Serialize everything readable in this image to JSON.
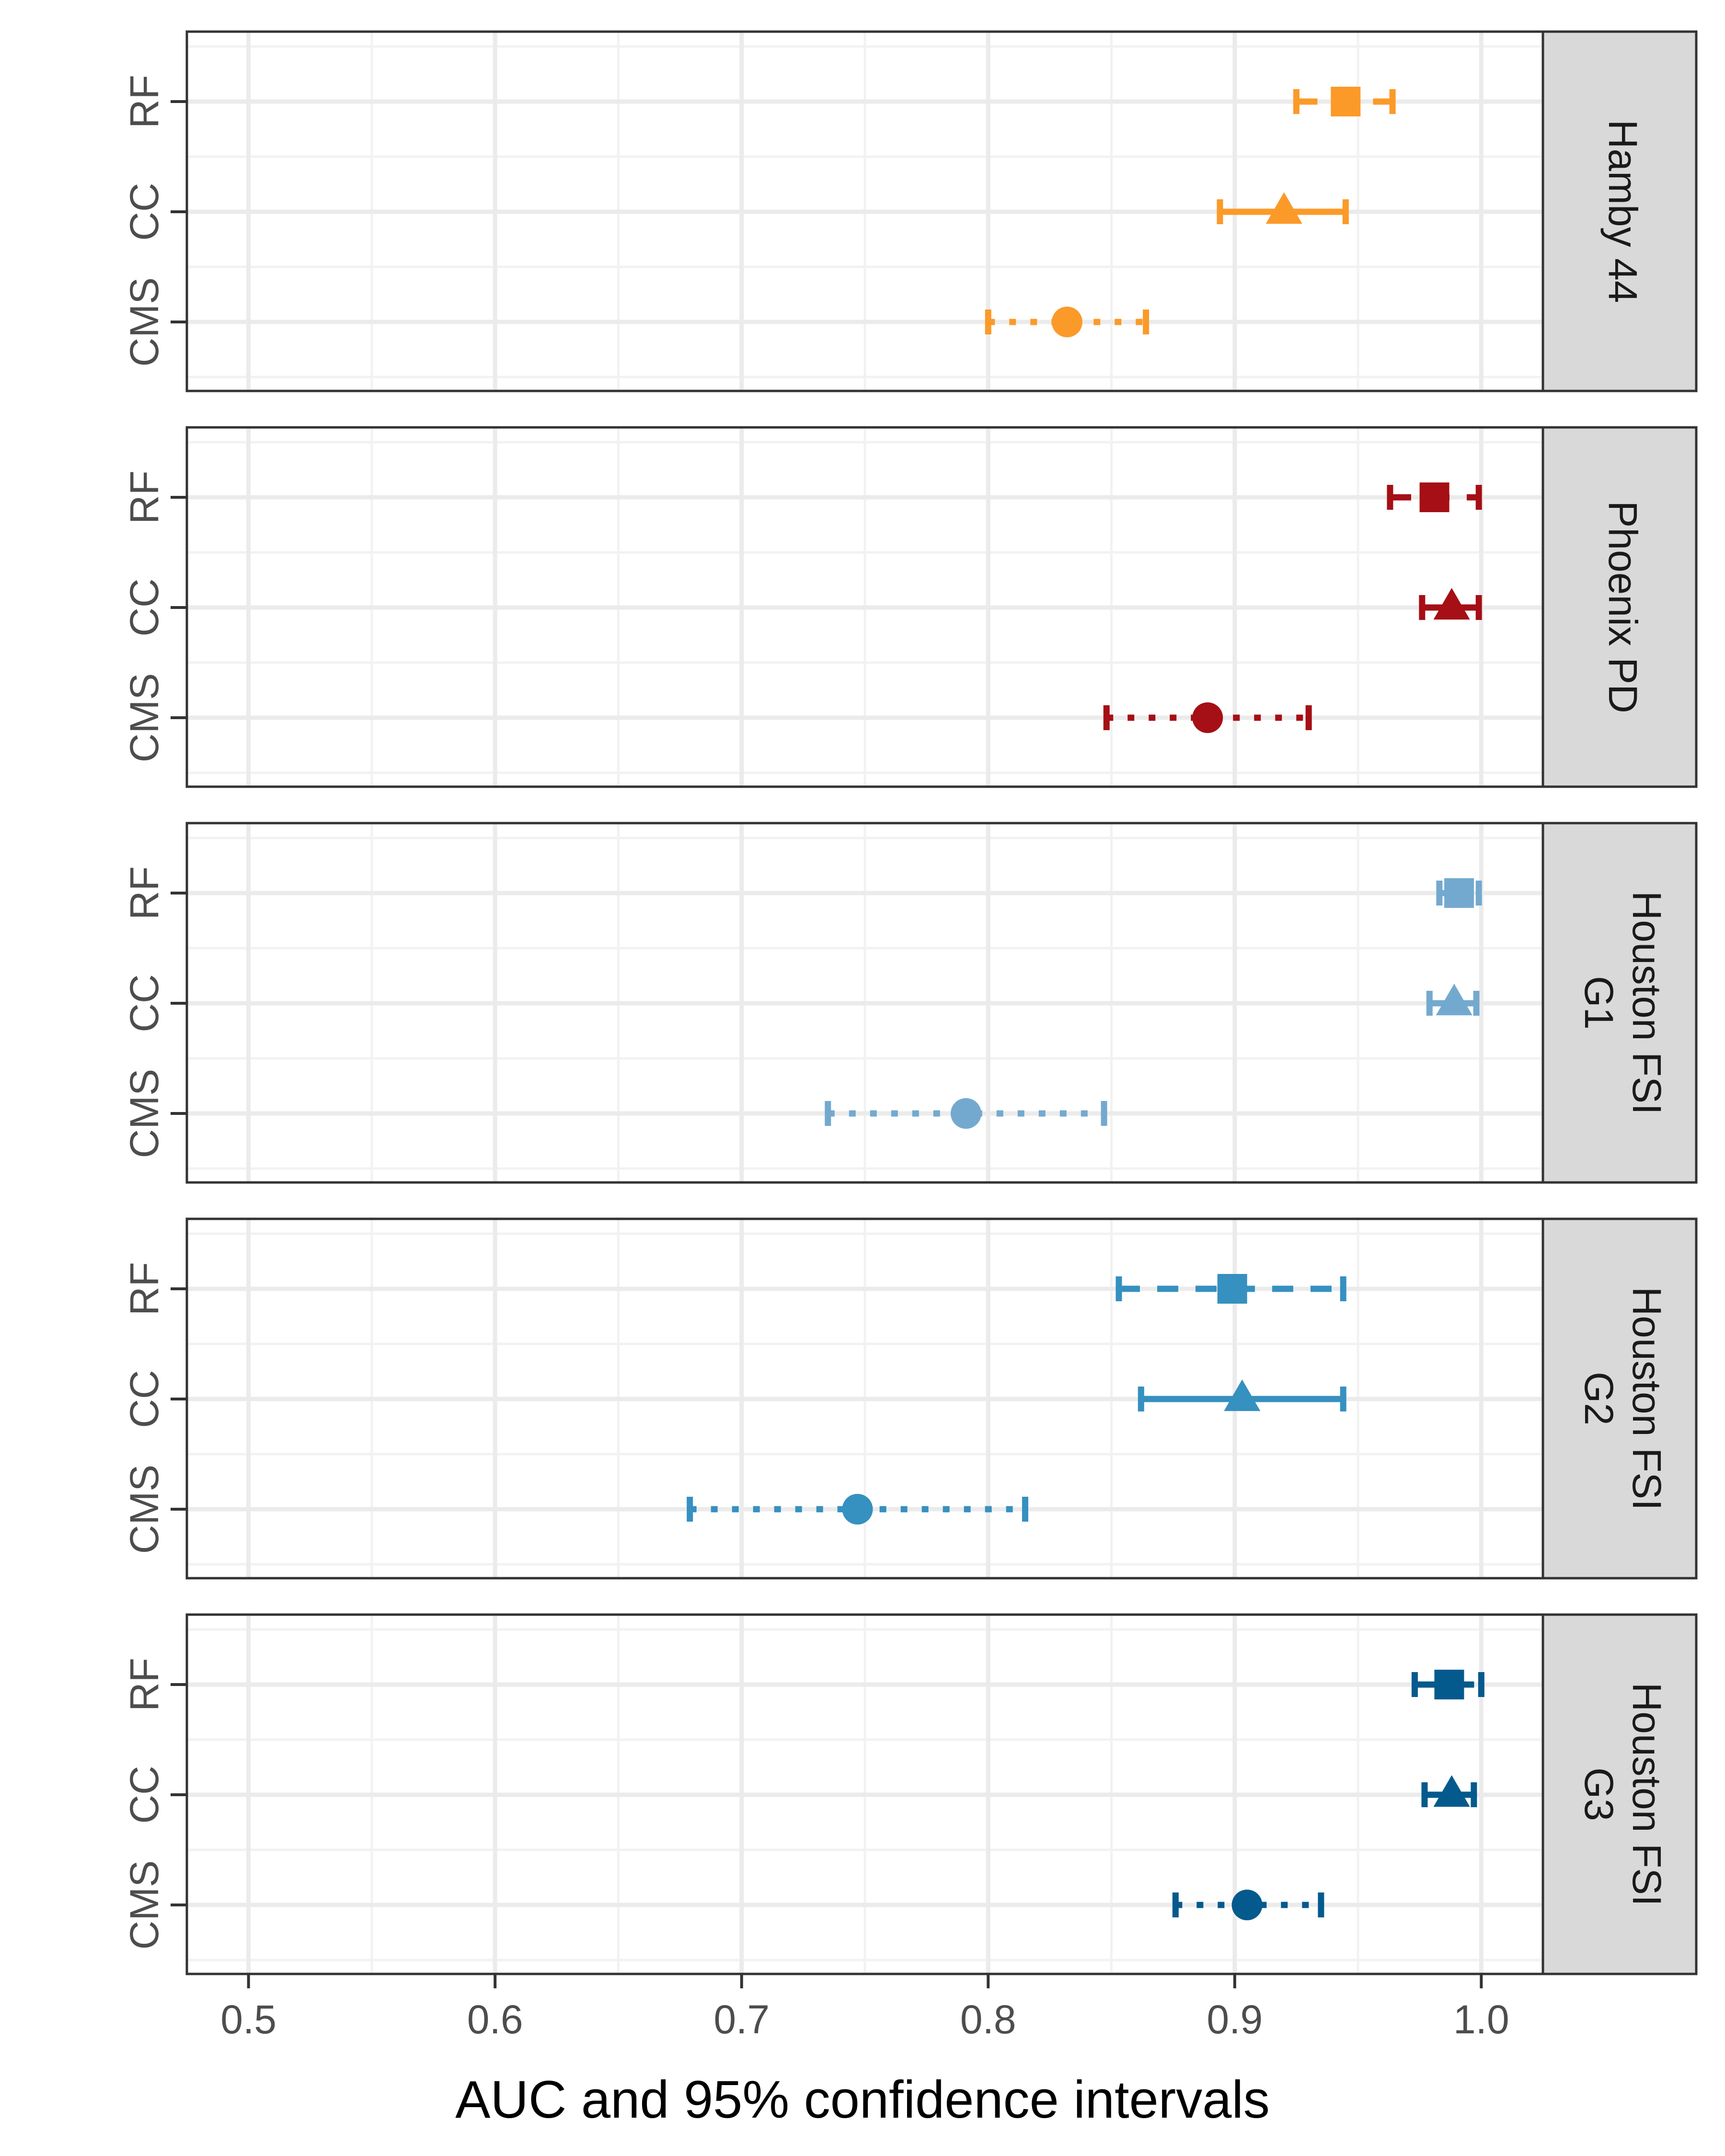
{
  "chart_data": {
    "type": "scatter",
    "xlabel": "AUC and 95% confidence intervals",
    "xlim": [
      0.475,
      1.025
    ],
    "xticks": [
      0.5,
      0.6,
      0.7,
      0.8,
      0.9,
      1.0
    ],
    "xtick_labels": [
      "0.5",
      "0.6",
      "0.7",
      "0.8",
      "0.9",
      "1.0"
    ],
    "categories": [
      "RF",
      "CC",
      "CMS"
    ],
    "grid": true,
    "panels": [
      {
        "label": [
          "Hamby 44"
        ],
        "color": "#fb9a29",
        "points": [
          {
            "method": "RF",
            "auc": 0.945,
            "lower": 0.925,
            "upper": 0.964,
            "shape": "square",
            "linetype": "dashed"
          },
          {
            "method": "CC",
            "auc": 0.92,
            "lower": 0.894,
            "upper": 0.945,
            "shape": "triangle",
            "linetype": "solid"
          },
          {
            "method": "CMS",
            "auc": 0.832,
            "lower": 0.8,
            "upper": 0.864,
            "shape": "circle",
            "linetype": "dotted"
          }
        ]
      },
      {
        "label": [
          "Phoenix PD"
        ],
        "color": "#a50f15",
        "points": [
          {
            "method": "RF",
            "auc": 0.981,
            "lower": 0.963,
            "upper": 0.999,
            "shape": "square",
            "linetype": "dashed"
          },
          {
            "method": "CC",
            "auc": 0.988,
            "lower": 0.976,
            "upper": 0.999,
            "shape": "triangle",
            "linetype": "solid"
          },
          {
            "method": "CMS",
            "auc": 0.889,
            "lower": 0.848,
            "upper": 0.93,
            "shape": "circle",
            "linetype": "dotted"
          }
        ]
      },
      {
        "label": [
          "Houston FSI",
          "G1"
        ],
        "color": "#74a9cf",
        "points": [
          {
            "method": "RF",
            "auc": 0.991,
            "lower": 0.983,
            "upper": 0.999,
            "shape": "square",
            "linetype": "dashed"
          },
          {
            "method": "CC",
            "auc": 0.989,
            "lower": 0.979,
            "upper": 0.998,
            "shape": "triangle",
            "linetype": "solid"
          },
          {
            "method": "CMS",
            "auc": 0.791,
            "lower": 0.735,
            "upper": 0.847,
            "shape": "circle",
            "linetype": "dotted"
          }
        ]
      },
      {
        "label": [
          "Houston FSI",
          "G2"
        ],
        "color": "#3690c0",
        "points": [
          {
            "method": "RF",
            "auc": 0.899,
            "lower": 0.853,
            "upper": 0.944,
            "shape": "square",
            "linetype": "dashed"
          },
          {
            "method": "CC",
            "auc": 0.903,
            "lower": 0.862,
            "upper": 0.944,
            "shape": "triangle",
            "linetype": "solid"
          },
          {
            "method": "CMS",
            "auc": 0.747,
            "lower": 0.679,
            "upper": 0.815,
            "shape": "circle",
            "linetype": "dotted"
          }
        ]
      },
      {
        "label": [
          "Houston FSI",
          "G3"
        ],
        "color": "#045a8d",
        "points": [
          {
            "method": "RF",
            "auc": 0.987,
            "lower": 0.973,
            "upper": 1.0,
            "shape": "square",
            "linetype": "dashed"
          },
          {
            "method": "CC",
            "auc": 0.988,
            "lower": 0.977,
            "upper": 0.997,
            "shape": "triangle",
            "linetype": "solid"
          },
          {
            "method": "CMS",
            "auc": 0.905,
            "lower": 0.876,
            "upper": 0.935,
            "shape": "circle",
            "linetype": "dotted"
          }
        ]
      }
    ]
  }
}
